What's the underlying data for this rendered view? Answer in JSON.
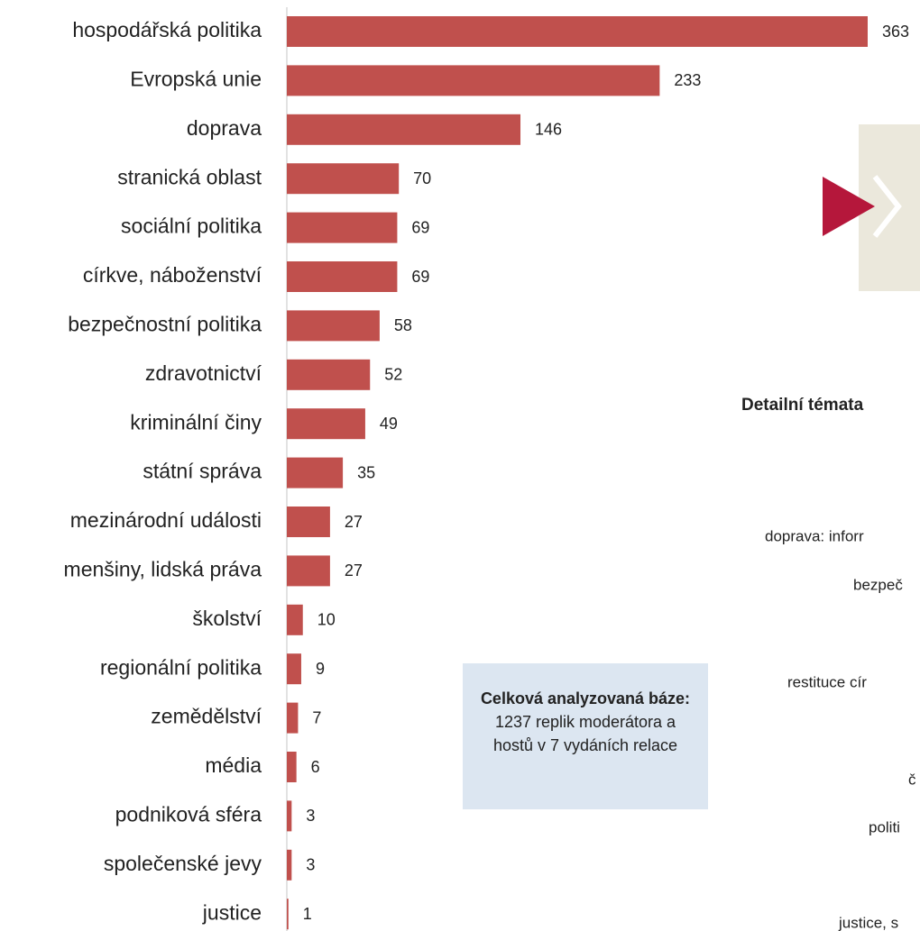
{
  "chart_data": {
    "type": "bar",
    "orientation": "horizontal",
    "categories": [
      "hospodářská politika",
      "Evropská unie",
      "doprava",
      "stranická oblast",
      "sociální politika",
      "církve, náboženství",
      "bezpečnostní politika",
      "zdravotnictví",
      "kriminální činy",
      "státní správa",
      "mezinárodní události",
      "menšiny, lidská práva",
      "školství",
      "regionální politika",
      "zemědělství",
      "média",
      "podniková sféra",
      "společenské jevy",
      "justice"
    ],
    "values": [
      363,
      233,
      146,
      70,
      69,
      69,
      58,
      52,
      49,
      35,
      27,
      27,
      10,
      9,
      7,
      6,
      3,
      3,
      1
    ],
    "color": "#c0504d",
    "xlim": [
      0,
      363
    ]
  },
  "info_box": {
    "bold": "Celková analyzovaná báze:",
    "text": "1237 replik moderátora a hostů v 7 vydáních relace"
  },
  "side_panel": {
    "title": "Detailní témata",
    "items": [
      "doprava: inforr",
      "bezpeč",
      "restituce cír",
      "č",
      "politi",
      "justice, s"
    ]
  }
}
